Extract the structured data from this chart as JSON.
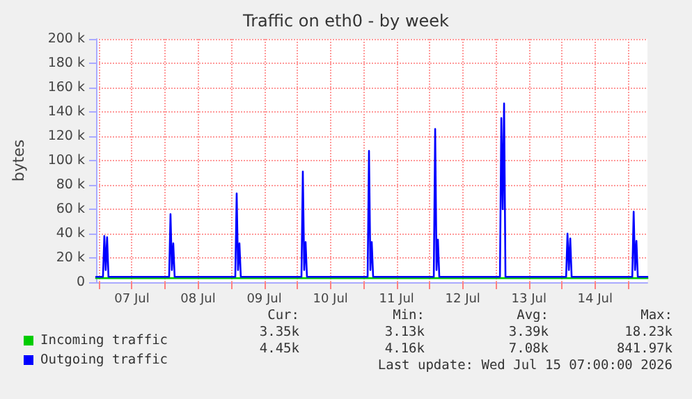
{
  "chart_data": {
    "type": "line",
    "title": "Traffic on eth0 - by week",
    "ylabel": "bytes",
    "xlim": [
      "2026-07-06T23:00",
      "2026-07-15T07:00"
    ],
    "xticks": [
      {
        "value": "2026-07-07T00:00",
        "label": null
      },
      {
        "value": "2026-07-07T12:00",
        "label": "07 Jul"
      },
      {
        "value": "2026-07-08T00:00",
        "label": null
      },
      {
        "value": "2026-07-08T12:00",
        "label": "08 Jul"
      },
      {
        "value": "2026-07-09T00:00",
        "label": null
      },
      {
        "value": "2026-07-09T12:00",
        "label": "09 Jul"
      },
      {
        "value": "2026-07-10T00:00",
        "label": null
      },
      {
        "value": "2026-07-10T12:00",
        "label": "10 Jul"
      },
      {
        "value": "2026-07-11T00:00",
        "label": null
      },
      {
        "value": "2026-07-11T12:00",
        "label": "11 Jul"
      },
      {
        "value": "2026-07-12T00:00",
        "label": null
      },
      {
        "value": "2026-07-12T12:00",
        "label": "12 Jul"
      },
      {
        "value": "2026-07-13T00:00",
        "label": null
      },
      {
        "value": "2026-07-13T12:00",
        "label": "13 Jul"
      },
      {
        "value": "2026-07-14T00:00",
        "label": null
      },
      {
        "value": "2026-07-14T12:00",
        "label": "14 Jul"
      },
      {
        "value": "2026-07-15T00:00",
        "label": null
      }
    ],
    "ylim": [
      0,
      200000
    ],
    "yticks": [
      0,
      {
        "value": 20000,
        "label": "20 k"
      },
      {
        "value": 40000,
        "label": "40 k"
      },
      {
        "value": 60000,
        "label": "60 k"
      },
      {
        "value": 80000,
        "label": "80 k"
      },
      {
        "value": 100000,
        "label": "100 k"
      },
      {
        "value": 120000,
        "label": "120 k"
      },
      {
        "value": 140000,
        "label": "140 k"
      },
      {
        "value": 160000,
        "label": "160 k"
      },
      {
        "value": 180000,
        "label": "180 k"
      },
      {
        "value": 200000,
        "label": "200 k"
      }
    ],
    "grid": true,
    "legend": "bottom left",
    "marker": "none",
    "line_style": "solid",
    "series": [
      {
        "name": "Incoming traffic",
        "color": "#00cc00",
        "x": [
          "2026-07-06T23:00",
          "2026-07-15T07:00"
        ],
        "values": [
          3350,
          3350
        ]
      },
      {
        "name": "Outgoing traffic",
        "color": "#0000ff",
        "x": [
          "2026-07-06T23:00",
          "2026-07-07T01:30",
          "2026-07-07T02:00",
          "2026-07-07T02:30",
          "2026-07-07T03:00",
          "2026-07-07T03:30",
          "2026-07-08T01:30",
          "2026-07-08T02:00",
          "2026-07-08T02:30",
          "2026-07-08T03:00",
          "2026-07-08T03:30",
          "2026-07-09T01:30",
          "2026-07-09T02:00",
          "2026-07-09T02:30",
          "2026-07-09T03:00",
          "2026-07-09T03:30",
          "2026-07-10T01:30",
          "2026-07-10T02:00",
          "2026-07-10T02:30",
          "2026-07-10T03:00",
          "2026-07-10T03:30",
          "2026-07-11T01:30",
          "2026-07-11T02:00",
          "2026-07-11T02:30",
          "2026-07-11T03:00",
          "2026-07-11T03:30",
          "2026-07-12T01:30",
          "2026-07-12T02:00",
          "2026-07-12T02:30",
          "2026-07-12T03:00",
          "2026-07-12T03:30",
          "2026-07-13T01:30",
          "2026-07-13T02:00",
          "2026-07-13T02:30",
          "2026-07-13T03:00",
          "2026-07-13T03:30",
          "2026-07-14T01:30",
          "2026-07-14T02:00",
          "2026-07-14T02:30",
          "2026-07-14T03:00",
          "2026-07-14T03:30",
          "2026-07-15T01:30",
          "2026-07-15T02:00",
          "2026-07-15T02:30",
          "2026-07-15T03:00",
          "2026-07-15T03:30",
          "2026-07-15T07:00"
        ],
        "values": [
          4450,
          4450,
          38000,
          10000,
          37000,
          4450,
          4450,
          56000,
          10000,
          32000,
          4450,
          4450,
          73000,
          10000,
          32000,
          4450,
          4450,
          91000,
          10000,
          33000,
          4450,
          4450,
          108000,
          10000,
          33000,
          4450,
          4450,
          126000,
          10000,
          35000,
          4450,
          4450,
          135000,
          60000,
          147000,
          4450,
          4450,
          40000,
          10000,
          36000,
          4450,
          4450,
          58000,
          10000,
          34000,
          4450,
          4450
        ]
      }
    ],
    "annotations": [
      "Cur:",
      "Min:",
      "Avg:",
      "Max:",
      "3.35k",
      "3.13k",
      "3.39k",
      "18.23k",
      "4.45k",
      "4.16k",
      "7.08k",
      "841.97k",
      "Last update: Wed Jul 15 07:00:00 2026"
    ]
  }
}
